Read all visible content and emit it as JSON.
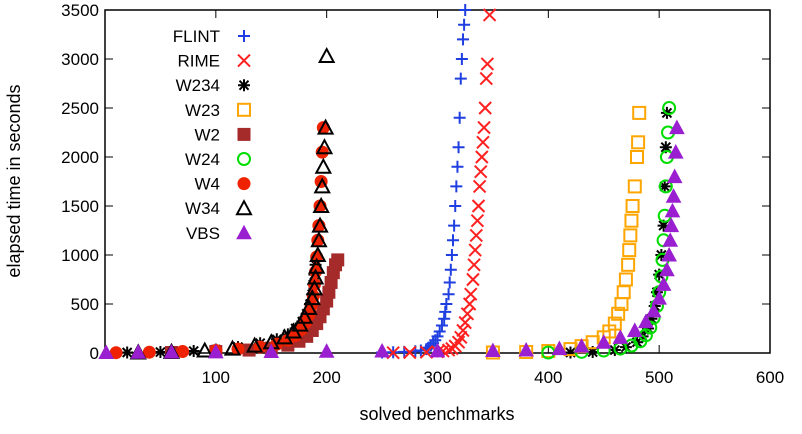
{
  "chart_data": {
    "type": "scatter",
    "title": "",
    "xlabel": "solved benchmarks",
    "ylabel": "elapsed time in seconds",
    "xlim": [
      0,
      600
    ],
    "ylim": [
      0,
      3500
    ],
    "xticks": [
      100,
      200,
      300,
      400,
      500,
      600
    ],
    "yticks": [
      0,
      500,
      1000,
      1500,
      2000,
      2500,
      3000,
      3500
    ],
    "grid": false,
    "legend_position": "top-left",
    "series": [
      {
        "name": "FLINT",
        "marker": "plus",
        "color": "#1f3fe0",
        "points": [
          [
            250,
            5
          ],
          [
            260,
            8
          ],
          [
            270,
            12
          ],
          [
            280,
            18
          ],
          [
            285,
            25
          ],
          [
            290,
            40
          ],
          [
            292,
            55
          ],
          [
            294,
            75
          ],
          [
            296,
            100
          ],
          [
            298,
            130
          ],
          [
            300,
            170
          ],
          [
            302,
            220
          ],
          [
            304,
            280
          ],
          [
            306,
            350
          ],
          [
            307,
            420
          ],
          [
            308,
            500
          ],
          [
            310,
            600
          ],
          [
            311,
            720
          ],
          [
            312,
            850
          ],
          [
            313,
            1000
          ],
          [
            314,
            1150
          ],
          [
            315,
            1300
          ],
          [
            316,
            1500
          ],
          [
            317,
            1700
          ],
          [
            318,
            1900
          ],
          [
            319,
            2100
          ],
          [
            320,
            2400
          ],
          [
            321,
            2800
          ],
          [
            322,
            3000
          ],
          [
            323,
            3200
          ],
          [
            324,
            3350
          ],
          [
            325,
            3500
          ]
        ]
      },
      {
        "name": "RIME",
        "marker": "x",
        "color": "#ff2020",
        "points": [
          [
            260,
            3
          ],
          [
            275,
            5
          ],
          [
            290,
            8
          ],
          [
            300,
            12
          ],
          [
            305,
            20
          ],
          [
            310,
            30
          ],
          [
            313,
            45
          ],
          [
            316,
            70
          ],
          [
            319,
            110
          ],
          [
            321,
            160
          ],
          [
            323,
            230
          ],
          [
            325,
            310
          ],
          [
            327,
            400
          ],
          [
            329,
            500
          ],
          [
            330,
            600
          ],
          [
            332,
            750
          ],
          [
            333,
            900
          ],
          [
            334,
            1050
          ],
          [
            335,
            1200
          ],
          [
            336,
            1350
          ],
          [
            337,
            1500
          ],
          [
            338,
            1700
          ],
          [
            339,
            1850
          ],
          [
            340,
            2000
          ],
          [
            341,
            2150
          ],
          [
            342,
            2300
          ],
          [
            343,
            2500
          ],
          [
            344,
            2800
          ],
          [
            345,
            2950
          ],
          [
            347,
            3450
          ]
        ]
      },
      {
        "name": "W234",
        "marker": "asterisk",
        "color": "#000000",
        "points": [
          [
            20,
            5
          ],
          [
            50,
            10
          ],
          [
            80,
            20
          ],
          [
            100,
            35
          ],
          [
            120,
            60
          ],
          [
            140,
            100
          ],
          [
            155,
            140
          ],
          [
            165,
            190
          ],
          [
            172,
            250
          ],
          [
            178,
            320
          ],
          [
            182,
            400
          ],
          [
            185,
            500
          ],
          [
            187,
            600
          ],
          [
            188,
            700
          ],
          [
            189,
            800
          ],
          [
            190,
            900
          ],
          [
            420,
            5
          ],
          [
            440,
            10
          ],
          [
            460,
            30
          ],
          [
            470,
            60
          ],
          [
            480,
            110
          ],
          [
            485,
            170
          ],
          [
            490,
            250
          ],
          [
            493,
            350
          ],
          [
            496,
            480
          ],
          [
            498,
            620
          ],
          [
            500,
            800
          ],
          [
            502,
            1000
          ],
          [
            504,
            1300
          ],
          [
            505,
            1700
          ],
          [
            506,
            2100
          ],
          [
            507,
            2450
          ]
        ]
      },
      {
        "name": "W23",
        "marker": "square-open",
        "color": "#ffa500",
        "points": [
          [
            350,
            5
          ],
          [
            380,
            10
          ],
          [
            400,
            20
          ],
          [
            420,
            40
          ],
          [
            430,
            70
          ],
          [
            440,
            110
          ],
          [
            450,
            160
          ],
          [
            455,
            220
          ],
          [
            460,
            300
          ],
          [
            463,
            400
          ],
          [
            466,
            500
          ],
          [
            468,
            620
          ],
          [
            470,
            750
          ],
          [
            472,
            900
          ],
          [
            473,
            1050
          ],
          [
            474,
            1200
          ],
          [
            475,
            1350
          ],
          [
            476,
            1500
          ],
          [
            478,
            1700
          ],
          [
            480,
            2000
          ],
          [
            481,
            2150
          ],
          [
            482,
            2450
          ]
        ]
      },
      {
        "name": "W2",
        "marker": "square-filled",
        "color": "#a52a2a",
        "points": [
          [
            60,
            5
          ],
          [
            100,
            15
          ],
          [
            130,
            30
          ],
          [
            150,
            50
          ],
          [
            165,
            80
          ],
          [
            175,
            120
          ],
          [
            182,
            170
          ],
          [
            187,
            230
          ],
          [
            191,
            300
          ],
          [
            194,
            370
          ],
          [
            197,
            450
          ],
          [
            200,
            530
          ],
          [
            202,
            620
          ],
          [
            204,
            720
          ],
          [
            206,
            820
          ],
          [
            208,
            900
          ],
          [
            210,
            950
          ]
        ]
      },
      {
        "name": "W24",
        "marker": "circle-open",
        "color": "#00dd00",
        "points": [
          [
            400,
            5
          ],
          [
            430,
            12
          ],
          [
            450,
            25
          ],
          [
            465,
            45
          ],
          [
            475,
            75
          ],
          [
            483,
            120
          ],
          [
            488,
            180
          ],
          [
            492,
            260
          ],
          [
            495,
            360
          ],
          [
            498,
            480
          ],
          [
            500,
            620
          ],
          [
            502,
            780
          ],
          [
            503,
            950
          ],
          [
            504,
            1150
          ],
          [
            505,
            1400
          ],
          [
            506,
            1700
          ],
          [
            507,
            2000
          ],
          [
            508,
            2250
          ],
          [
            509,
            2500
          ]
        ]
      },
      {
        "name": "W4",
        "marker": "circle-filled",
        "color": "#ee2200",
        "points": [
          [
            10,
            3
          ],
          [
            40,
            8
          ],
          [
            70,
            15
          ],
          [
            100,
            25
          ],
          [
            120,
            40
          ],
          [
            140,
            60
          ],
          [
            155,
            90
          ],
          [
            165,
            130
          ],
          [
            172,
            180
          ],
          [
            177,
            240
          ],
          [
            181,
            310
          ],
          [
            184,
            390
          ],
          [
            186,
            480
          ],
          [
            188,
            580
          ],
          [
            189,
            700
          ],
          [
            190,
            830
          ],
          [
            191,
            980
          ],
          [
            192,
            1150
          ],
          [
            193,
            1300
          ],
          [
            194,
            1500
          ],
          [
            195,
            1750
          ],
          [
            196,
            2050
          ],
          [
            197,
            2300
          ]
        ]
      },
      {
        "name": "W34",
        "marker": "triangle-open",
        "color": "#000000",
        "points": [
          [
            30,
            5
          ],
          [
            60,
            12
          ],
          [
            90,
            25
          ],
          [
            115,
            45
          ],
          [
            135,
            75
          ],
          [
            150,
            110
          ],
          [
            162,
            160
          ],
          [
            170,
            220
          ],
          [
            176,
            290
          ],
          [
            180,
            370
          ],
          [
            184,
            460
          ],
          [
            187,
            560
          ],
          [
            189,
            660
          ],
          [
            190,
            770
          ],
          [
            191,
            880
          ],
          [
            192,
            1000
          ],
          [
            193,
            1150
          ],
          [
            194,
            1300
          ],
          [
            195,
            1500
          ],
          [
            196,
            1700
          ],
          [
            197,
            1900
          ],
          [
            198,
            2100
          ],
          [
            199,
            2300
          ],
          [
            200,
            3030
          ]
        ]
      },
      {
        "name": "VBS",
        "marker": "triangle-filled",
        "color": "#9a1fd0",
        "points": [
          [
            1,
            5
          ],
          [
            30,
            8
          ],
          [
            60,
            10
          ],
          [
            100,
            12
          ],
          [
            150,
            15
          ],
          [
            200,
            18
          ],
          [
            250,
            20
          ],
          [
            300,
            22
          ],
          [
            350,
            25
          ],
          [
            380,
            30
          ],
          [
            410,
            45
          ],
          [
            430,
            70
          ],
          [
            450,
            110
          ],
          [
            465,
            160
          ],
          [
            478,
            230
          ],
          [
            488,
            320
          ],
          [
            495,
            430
          ],
          [
            500,
            560
          ],
          [
            504,
            700
          ],
          [
            507,
            850
          ],
          [
            509,
            1000
          ],
          [
            510,
            1150
          ],
          [
            511,
            1300
          ],
          [
            512,
            1450
          ],
          [
            513,
            1600
          ],
          [
            514,
            1800
          ],
          [
            515,
            2050
          ],
          [
            516,
            2300
          ]
        ]
      }
    ]
  }
}
